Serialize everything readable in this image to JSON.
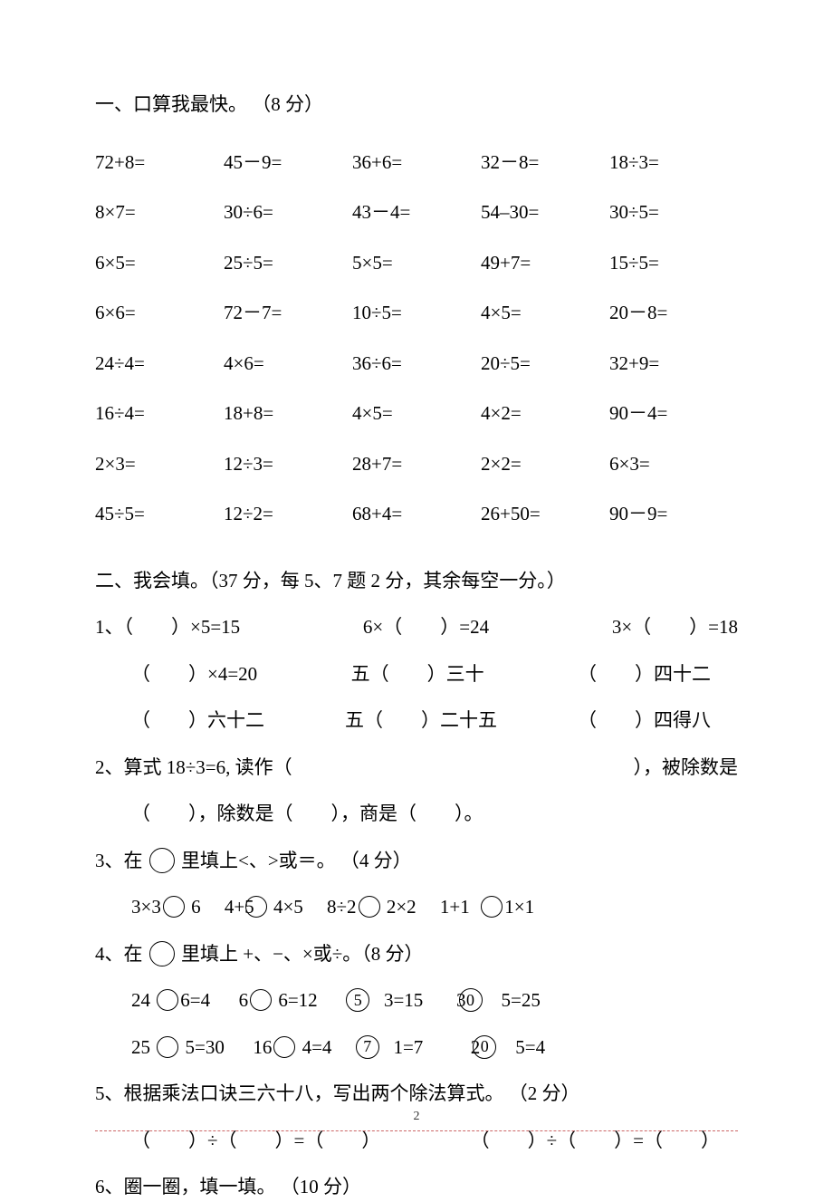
{
  "section1": {
    "title": "一、口算我最快。 （8 分）",
    "cells": [
      [
        "72+8=",
        "45－9=",
        "36+6=",
        "32－8=",
        "18÷3="
      ],
      [
        "8×7=",
        "30÷6=",
        "43－4=",
        "54–30=",
        "30÷5="
      ],
      [
        "6×5=",
        "25÷5=",
        "5×5=",
        "49+7=",
        "15÷5="
      ],
      [
        "6×6=",
        "72－7=",
        "10÷5=",
        "4×5=",
        "20－8="
      ],
      [
        "24÷4=",
        "4×6=",
        "36÷6=",
        "20÷5=",
        "32+9="
      ],
      [
        "16÷4=",
        "18+8=",
        "4×5=",
        "4×2=",
        "90－4="
      ],
      [
        "2×3=",
        "12÷3=",
        "28+7=",
        "2×2=",
        "6×3="
      ],
      [
        "45÷5=",
        "12÷2=",
        "68+4=",
        "26+50=",
        "90－9="
      ]
    ]
  },
  "section2": {
    "title": "二、我会填。（37 分，每 5、7 题 2 分，其余每空一分。）",
    "q1": {
      "line1": {
        "a": "1、（　　）×5=15",
        "b": "6×（　　）=24",
        "c": "3×（　　）=18"
      },
      "line2": {
        "a": "（　　）×4=20",
        "b": "五（　　）三十",
        "c": "（　　）四十二"
      },
      "line3": {
        "a": "（　　）六十二",
        "b": "五（　　）二十五",
        "c": "（　　）四得八"
      }
    },
    "q2": {
      "line1a": "2、算式 18÷3=6, 读作（",
      "line1b": "），被除数是",
      "line2": "（　　），除数是（　　），商是（　　）。"
    },
    "q3": {
      "title": "3、在",
      "title2": "里填上<、>或＝。 （4 分）",
      "a1": "3×3",
      "a2": "6",
      "b1": "4+5",
      "b2": "4×5",
      "c1": "8÷2",
      "c2": "2×2",
      "d1": "1+1",
      "d2": "1×1"
    },
    "q4": {
      "title": "4、在",
      "title2": "里填上 +、−、×或÷。（8 分）",
      "r1": {
        "a1": "24",
        "a2": "6=4",
        "b1": "6",
        "b2": "6=12",
        "c1": "5",
        "c2": "3=15",
        "d1": "30",
        "d2": "5=25"
      },
      "r2": {
        "a1": "25",
        "a2": "5=30",
        "b1": "16",
        "b2": "4=4",
        "c1": "7",
        "c2": "1=7",
        "d1": "20",
        "d2": "5=4"
      }
    },
    "q5": {
      "title": "5、根据乘法口诀三六十八，写出两个除法算式。 （2 分）",
      "eq": "（　　）÷（　　）=（　　）",
      "eq2": "（　　）÷（　　）=（　　）"
    },
    "q6": {
      "title": "6、圈一圈，填一填。 （10 分）"
    }
  },
  "footer": {
    "page": "2"
  }
}
